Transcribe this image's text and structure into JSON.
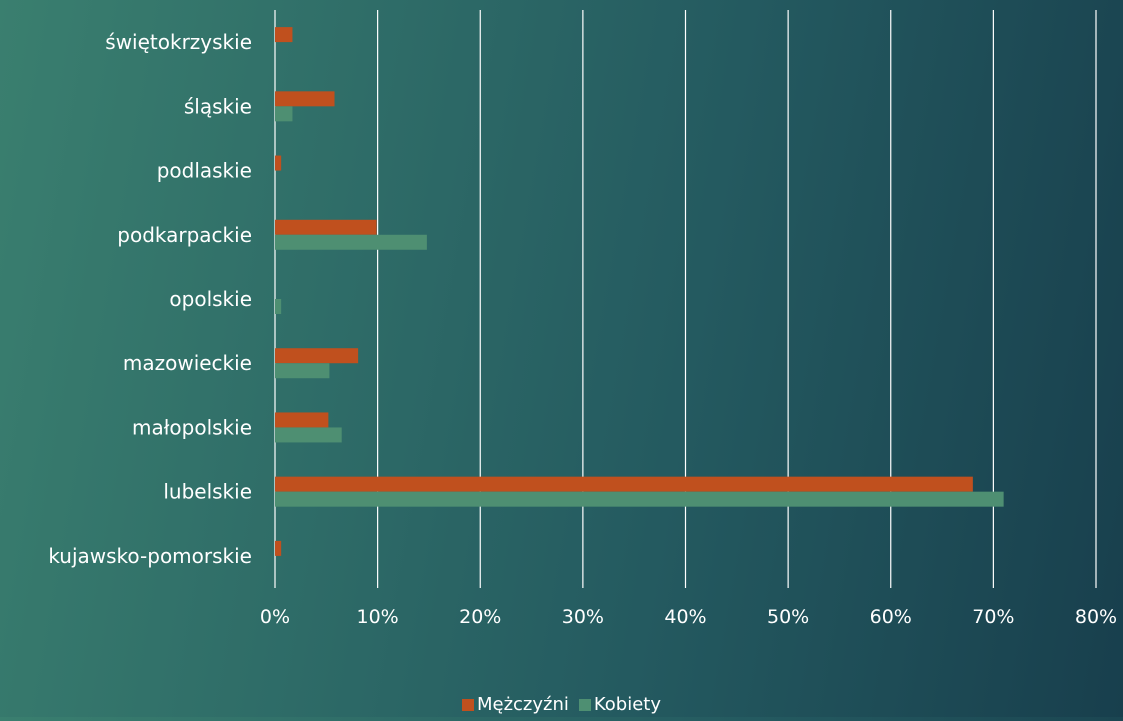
{
  "chart_data": {
    "type": "bar",
    "orientation": "horizontal",
    "categories": [
      "kujawsko-pomorskie",
      "lubelskie",
      "małopolskie",
      "mazowieckie",
      "opolskie",
      "podkarpackie",
      "podlaskie",
      "śląskie",
      "świętokrzyskie"
    ],
    "series": [
      {
        "name": "Mężczyźni",
        "color": "#c0501e",
        "values": [
          0.6,
          68,
          5.2,
          8.1,
          0,
          9.9,
          0.6,
          5.8,
          1.7
        ]
      },
      {
        "name": "Kobiety",
        "color": "#4e8f72",
        "values": [
          0,
          71,
          6.5,
          5.3,
          0.6,
          14.8,
          0,
          1.7,
          0
        ]
      }
    ],
    "xlim": [
      0,
      80
    ],
    "x_ticks": [
      "0%",
      "10%",
      "20%",
      "30%",
      "40%",
      "50%",
      "60%",
      "70%",
      "80%"
    ],
    "grid": "vertical",
    "legend_position": "bottom",
    "text_color": "#ffffff",
    "grid_color": "#ffffff"
  }
}
